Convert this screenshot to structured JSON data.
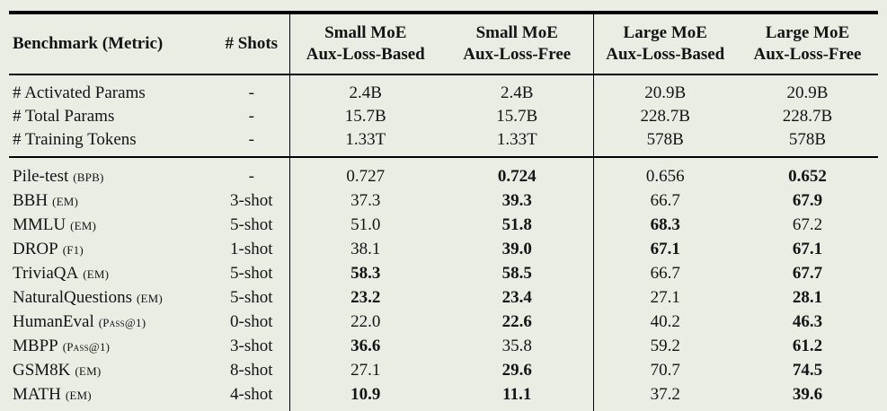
{
  "page": {
    "background_color": "#e9ede4",
    "text_color": "#141414",
    "rule_color": "#000000"
  },
  "table": {
    "header": {
      "benchmark": "Benchmark (Metric)",
      "shots": "# Shots",
      "model_columns": [
        {
          "line1": "Small MoE",
          "line2": "Aux-Loss-Based"
        },
        {
          "line1": "Small MoE",
          "line2": "Aux-Loss-Free"
        },
        {
          "line1": "Large MoE",
          "line2": "Aux-Loss-Based"
        },
        {
          "line1": "Large MoE",
          "line2": "Aux-Loss-Free"
        }
      ]
    },
    "param_rows": [
      {
        "name": "# Activated Params",
        "shots": "-",
        "values": [
          "2.4B",
          "2.4B",
          "20.9B",
          "20.9B"
        ]
      },
      {
        "name": "# Total Params",
        "shots": "-",
        "values": [
          "15.7B",
          "15.7B",
          "228.7B",
          "228.7B"
        ]
      },
      {
        "name": "# Training Tokens",
        "shots": "-",
        "values": [
          "1.33T",
          "1.33T",
          "578B",
          "578B"
        ]
      }
    ],
    "benchmark_rows": [
      {
        "name": "Pile-test",
        "metric": "(BPB)",
        "shots": "-",
        "values": [
          "0.727",
          "0.724",
          "0.656",
          "0.652"
        ],
        "bold": [
          false,
          true,
          false,
          true
        ]
      },
      {
        "name": "BBH",
        "metric": "(EM)",
        "shots": "3-shot",
        "values": [
          "37.3",
          "39.3",
          "66.7",
          "67.9"
        ],
        "bold": [
          false,
          true,
          false,
          true
        ]
      },
      {
        "name": "MMLU",
        "metric": "(EM)",
        "shots": "5-shot",
        "values": [
          "51.0",
          "51.8",
          "68.3",
          "67.2"
        ],
        "bold": [
          false,
          true,
          true,
          false
        ]
      },
      {
        "name": "DROP",
        "metric": "(F1)",
        "shots": "1-shot",
        "values": [
          "38.1",
          "39.0",
          "67.1",
          "67.1"
        ],
        "bold": [
          false,
          true,
          true,
          true
        ]
      },
      {
        "name": "TriviaQA",
        "metric": "(EM)",
        "shots": "5-shot",
        "values": [
          "58.3",
          "58.5",
          "66.7",
          "67.7"
        ],
        "bold": [
          true,
          true,
          false,
          true
        ]
      },
      {
        "name": "NaturalQuestions",
        "metric": "(EM)",
        "shots": "5-shot",
        "values": [
          "23.2",
          "23.4",
          "27.1",
          "28.1"
        ],
        "bold": [
          true,
          true,
          false,
          true
        ]
      },
      {
        "name": "HumanEval",
        "metric": "(Pass@1)",
        "shots": "0-shot",
        "values": [
          "22.0",
          "22.6",
          "40.2",
          "46.3"
        ],
        "bold": [
          false,
          true,
          false,
          true
        ]
      },
      {
        "name": "MBPP",
        "metric": "(Pass@1)",
        "shots": "3-shot",
        "values": [
          "36.6",
          "35.8",
          "59.2",
          "61.2"
        ],
        "bold": [
          true,
          false,
          false,
          true
        ]
      },
      {
        "name": "GSM8K",
        "metric": "(EM)",
        "shots": "8-shot",
        "values": [
          "27.1",
          "29.6",
          "70.7",
          "74.5"
        ],
        "bold": [
          false,
          true,
          false,
          true
        ]
      },
      {
        "name": "MATH",
        "metric": "(EM)",
        "shots": "4-shot",
        "values": [
          "10.9",
          "11.1",
          "37.2",
          "39.6"
        ],
        "bold": [
          true,
          true,
          false,
          true
        ]
      }
    ]
  }
}
